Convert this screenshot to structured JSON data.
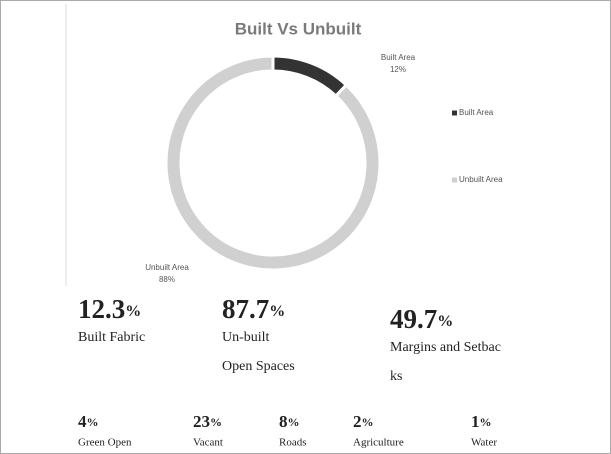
{
  "chart_data": {
    "type": "pie",
    "title": "Built Vs Unbuilt",
    "categories": [
      "Built Area",
      "Unbuilt Area"
    ],
    "values": [
      12,
      88
    ],
    "value_labels": [
      "12%",
      "88%"
    ],
    "colors": [
      "#333333",
      "#d0d0d0"
    ],
    "legend": "right"
  },
  "stats": [
    {
      "value": "12.3",
      "unit": "%",
      "lines": [
        "Built Fabric"
      ]
    },
    {
      "value": "87.7",
      "unit": "%",
      "lines": [
        "Un-built",
        "Open Spaces"
      ]
    },
    {
      "value": "49.7",
      "unit": "%",
      "lines": [
        "Margins and Setbac",
        "ks"
      ]
    }
  ],
  "small_stats": [
    {
      "value": "4",
      "unit": "%",
      "label": "Green Open"
    },
    {
      "value": "23",
      "unit": "%",
      "label": "Vacant"
    },
    {
      "value": "8",
      "unit": "%",
      "label": "Roads"
    },
    {
      "value": "2",
      "unit": "%",
      "label": "Agriculture"
    },
    {
      "value": "1",
      "unit": "%",
      "label": "Water"
    }
  ]
}
